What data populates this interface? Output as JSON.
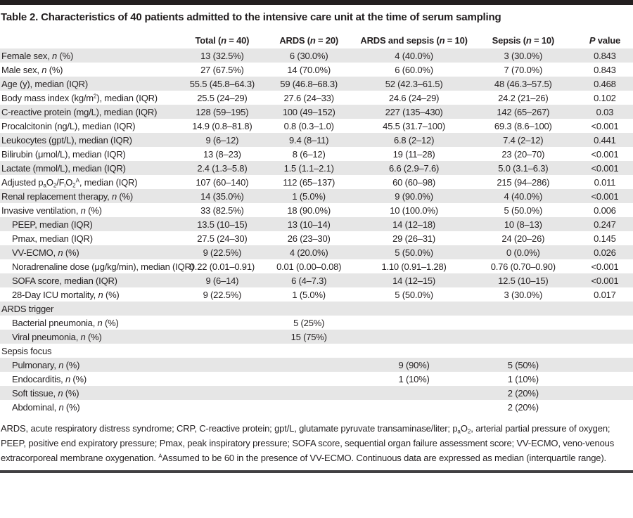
{
  "title": "Table 2. Characteristics of 40 patients admitted to the intensive care unit at the time of serum sampling",
  "columns": [
    "",
    "Total (*n* = 40)",
    "ARDS (*n* = 20)",
    "ARDS and sepsis (*n* = 10)",
    "Sepsis (*n* = 10)",
    "*P* value"
  ],
  "rows": [
    {
      "label": "Female sex, *n* (%)",
      "indent": false,
      "section": false,
      "values": [
        "13 (32.5%)",
        "6 (30.0%)",
        "4 (40.0%)",
        "3 (30.0%)",
        "0.843"
      ]
    },
    {
      "label": "Male sex, *n* (%)",
      "indent": false,
      "section": false,
      "values": [
        "27 (67.5%)",
        "14 (70.0%)",
        "6 (60.0%)",
        "7 (70.0%)",
        "0.843"
      ]
    },
    {
      "label": "Age (y), median (IQR)",
      "indent": false,
      "section": false,
      "values": [
        "55.5 (45.8–64.3)",
        "59 (46.8–68.3)",
        "52 (42.3–61.5)",
        "48 (46.3–57.5)",
        "0.468"
      ]
    },
    {
      "label": "Body mass index (kg/m^2^), median (IQR)",
      "indent": false,
      "section": false,
      "values": [
        "25.5 (24–29)",
        "27.6 (24–33)",
        "24.6 (24–29)",
        "24.2 (21–26)",
        "0.102"
      ]
    },
    {
      "label": "C-reactive protein (mg/L), median (IQR)",
      "indent": false,
      "section": false,
      "values": [
        "128 (59–195)",
        "100 (49–152)",
        "227 (135–430)",
        "142 (65–267)",
        "0.03"
      ]
    },
    {
      "label": "Procalcitonin (ng/L), median (IQR)",
      "indent": false,
      "section": false,
      "values": [
        "14.9 (0.8–81.8)",
        "0.8 (0.3–1.0)",
        "45.5 (31.7–100)",
        "69.3 (8.6–100)",
        "<0.001"
      ]
    },
    {
      "label": "Leukocytes (gpt/L), median (IQR)",
      "indent": false,
      "section": false,
      "values": [
        "9 (6–12)",
        "9.4 (8–11)",
        "6.8 (2–12)",
        "7.4 (2–12)",
        "0.441"
      ]
    },
    {
      "label": "Bilirubin (μmol/L), median (IQR)",
      "indent": false,
      "section": false,
      "values": [
        "13 (8–23)",
        "8 (6–12)",
        "19 (11–28)",
        "23 (20–70)",
        "<0.001"
      ]
    },
    {
      "label": "Lactate (mmol/L), median (IQR)",
      "indent": false,
      "section": false,
      "values": [
        "2.4 (1.3–5.8)",
        "1.5 (1.1–2.1)",
        "6.6 (2.9–7.6)",
        "5.0 (3.1–6.3)",
        "<0.001"
      ]
    },
    {
      "label": "Adjusted p~a~O~2~/F~i~O~2~^A^, median (IQR)",
      "indent": false,
      "section": false,
      "values": [
        "107 (60–140)",
        "112 (65–137)",
        "60 (60–98)",
        "215 (94–286)",
        "0.011"
      ]
    },
    {
      "label": "Renal replacement therapy, *n* (%)",
      "indent": false,
      "section": false,
      "values": [
        "14 (35.0%)",
        "1 (5.0%)",
        "9 (90.0%)",
        "4 (40.0%)",
        "<0.001"
      ]
    },
    {
      "label": "Invasive ventilation, *n* (%)",
      "indent": false,
      "section": false,
      "values": [
        "33 (82.5%)",
        "18 (90.0%)",
        "10 (100.0%)",
        "5 (50.0%)",
        "0.006"
      ]
    },
    {
      "label": "PEEP, median (IQR)",
      "indent": true,
      "section": false,
      "values": [
        "13.5 (10–15)",
        "13 (10–14)",
        "14 (12–18)",
        "10 (8–13)",
        "0.247"
      ]
    },
    {
      "label": "Pmax, median (IQR)",
      "indent": true,
      "section": false,
      "values": [
        "27.5 (24–30)",
        "26 (23–30)",
        "29 (26–31)",
        "24 (20–26)",
        "0.145"
      ]
    },
    {
      "label": "VV-ECMO, *n* (%)",
      "indent": true,
      "section": false,
      "values": [
        "9 (22.5%)",
        "4 (20.0%)",
        "5 (50.0%)",
        "0 (0.0%)",
        "0.026"
      ]
    },
    {
      "label": "Noradrenaline dose (μg/kg/min), median (IQR)",
      "indent": true,
      "section": false,
      "values": [
        "0.22 (0.01–0.91)",
        "0.01 (0.00–0.08)",
        "1.10 (0.91–1.28)",
        "0.76 (0.70–0.90)",
        "<0.001"
      ]
    },
    {
      "label": "SOFA score, median (IQR)",
      "indent": true,
      "section": false,
      "values": [
        "9 (6–14)",
        "6 (4–7.3)",
        "14 (12–15)",
        "12.5 (10–15)",
        "<0.001"
      ]
    },
    {
      "label": "28-Day ICU mortality, *n* (%)",
      "indent": true,
      "section": false,
      "values": [
        "9 (22.5%)",
        "1 (5.0%)",
        "5 (50.0%)",
        "3 (30.0%)",
        "0.017"
      ]
    },
    {
      "label": "ARDS trigger",
      "indent": false,
      "section": true,
      "values": [
        "",
        "",
        "",
        "",
        ""
      ]
    },
    {
      "label": "Bacterial pneumonia, *n* (%)",
      "indent": true,
      "section": false,
      "values": [
        "",
        "5 (25%)",
        "",
        "",
        ""
      ]
    },
    {
      "label": "Viral pneumonia, *n* (%)",
      "indent": true,
      "section": false,
      "values": [
        "",
        "15 (75%)",
        "",
        "",
        ""
      ]
    },
    {
      "label": "Sepsis focus",
      "indent": false,
      "section": true,
      "values": [
        "",
        "",
        "",
        "",
        ""
      ]
    },
    {
      "label": "Pulmonary, *n* (%)",
      "indent": true,
      "section": false,
      "values": [
        "",
        "",
        "9 (90%)",
        "5 (50%)",
        ""
      ]
    },
    {
      "label": "Endocarditis, *n* (%)",
      "indent": true,
      "section": false,
      "values": [
        "",
        "",
        "1 (10%)",
        "1 (10%)",
        ""
      ]
    },
    {
      "label": "Soft tissue, *n* (%)",
      "indent": true,
      "section": false,
      "values": [
        "",
        "",
        "",
        "2 (20%)",
        ""
      ]
    },
    {
      "label": "Abdominal, *n* (%)",
      "indent": true,
      "section": false,
      "values": [
        "",
        "",
        "",
        "2 (20%)",
        ""
      ]
    }
  ],
  "footnote_lines": [
    "ARDS, acute respiratory distress syndrome; CRP, C-reactive protein; gpt/L, glutamate pyruvate transaminase/liter; p~a~O~2~, arterial partial pressure of oxygen;",
    "PEEP, positive end expiratory pressure; Pmax, peak inspiratory pressure; SOFA score, sequential organ failure assessment score; VV-ECMO, veno-venous",
    "extracorporeal membrane oxygenation. ^A^Assumed to be 60 in the presence of VV-ECMO. Continuous data are expressed as median (interquartile range)."
  ],
  "colors": {
    "text": "#231f20",
    "row_stripe": "#e6e6e6",
    "top_rule": "#231f20",
    "bottom_rule": "#414042"
  }
}
